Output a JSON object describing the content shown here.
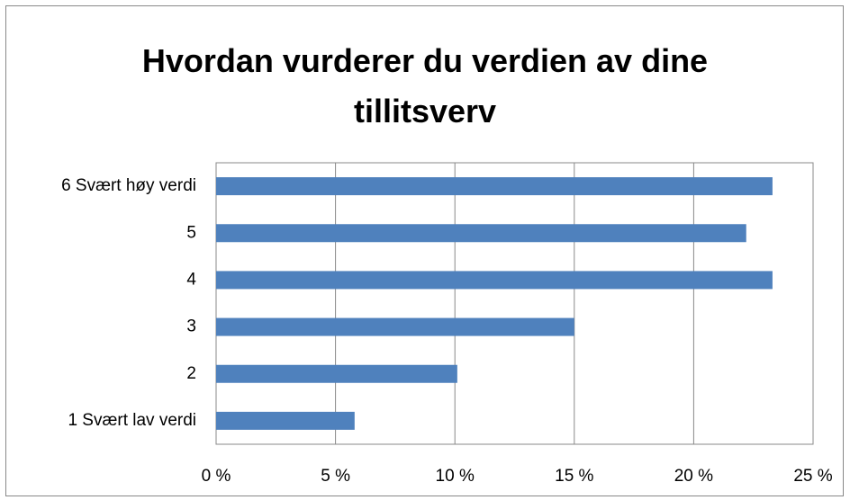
{
  "chart_data": {
    "type": "barh",
    "title": "Hvordan vurderer du verdien av dine tillitsverv",
    "categories": [
      "6 Svært høy verdi",
      "5",
      "4",
      "3",
      "2",
      "1 Svært lav verdi"
    ],
    "values": [
      23.3,
      22.2,
      23.3,
      15.0,
      10.1,
      5.8
    ],
    "color": "#4f81bd",
    "xlim": [
      0,
      25
    ],
    "xticks": [
      {
        "value": 0,
        "label": "0 %"
      },
      {
        "value": 5,
        "label": "5 %"
      },
      {
        "value": 10,
        "label": "10 %"
      },
      {
        "value": 15,
        "label": "15 %"
      },
      {
        "value": 20,
        "label": "20 %"
      },
      {
        "value": 25,
        "label": "25 %"
      }
    ],
    "grid": true
  }
}
